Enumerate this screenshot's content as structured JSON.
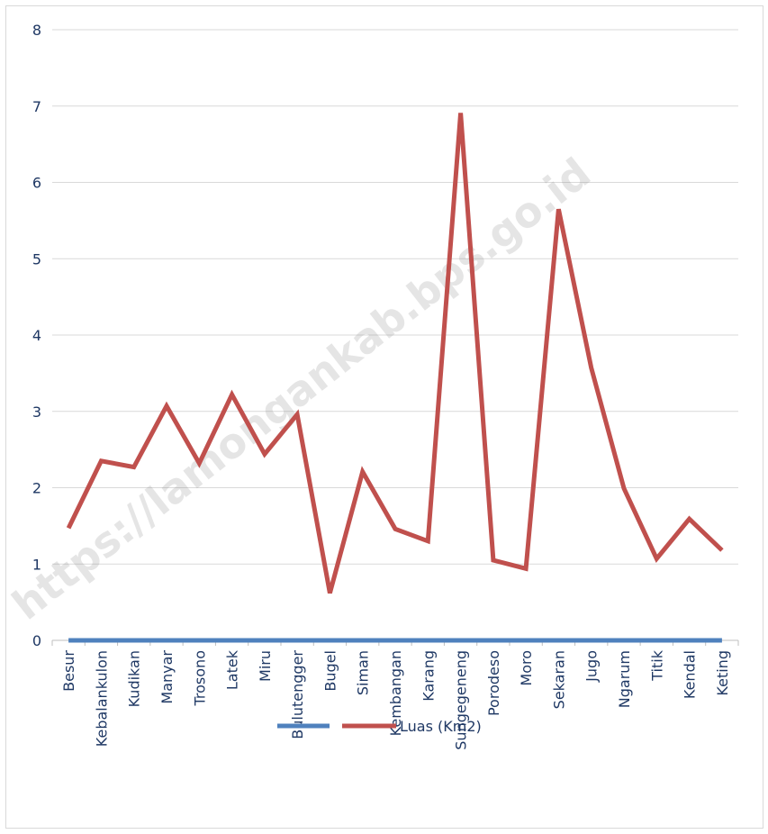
{
  "watermark": "https://lamongankab.bps.go.id",
  "chart_data": {
    "type": "line",
    "categories": [
      "Besur",
      "Kebalankulon",
      "Kudikan",
      "Manyar",
      "Trosono",
      "Latek",
      "Miru",
      "Bulutengger",
      "Bugel",
      "Siman",
      "Kembangan",
      "Karang",
      "Sungegeneng",
      "Porodeso",
      "Moro",
      "Sekaran",
      "Jugo",
      "Ngarum",
      "Titik",
      "Kendal",
      "Keting"
    ],
    "series": [
      {
        "name": "",
        "color": "#4f81bd",
        "values": [
          0,
          0,
          0,
          0,
          0,
          0,
          0,
          0,
          0,
          0,
          0,
          0,
          0,
          0,
          0,
          0,
          0,
          0,
          0,
          0,
          0
        ]
      },
      {
        "name": "Luas (Km2)",
        "color": "#c0504d",
        "values": [
          1.47,
          2.35,
          2.27,
          3.07,
          2.32,
          3.22,
          2.44,
          2.96,
          0.62,
          2.21,
          1.46,
          1.3,
          6.91,
          1.05,
          0.94,
          5.65,
          3.57,
          1.99,
          1.07,
          1.59,
          1.18
        ]
      }
    ],
    "ylim": [
      0,
      8
    ],
    "yticks": [
      "0",
      "1",
      "2",
      "3",
      "4",
      "5",
      "6",
      "7",
      "8"
    ],
    "grid": true,
    "legend": "bottom"
  }
}
